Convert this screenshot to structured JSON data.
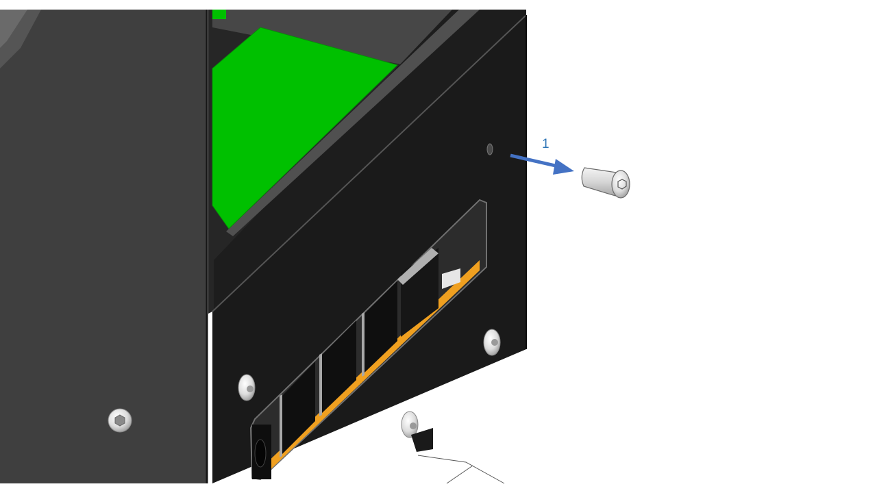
{
  "diagram": {
    "step_number": "1",
    "colors": {
      "background": "#ffffff",
      "arrow": "#4472c4",
      "step_label": "#2e75b6",
      "pcb_green": "#00c000",
      "chassis_dark": "#1b1b1b",
      "chassis_mid": "#3e3e3e",
      "amber_trim": "#f0a020",
      "screw_silver": "#e6e6e6"
    },
    "icons": {
      "arrow": "removal-arrow-icon",
      "screw": "button-head-screw-icon"
    }
  }
}
